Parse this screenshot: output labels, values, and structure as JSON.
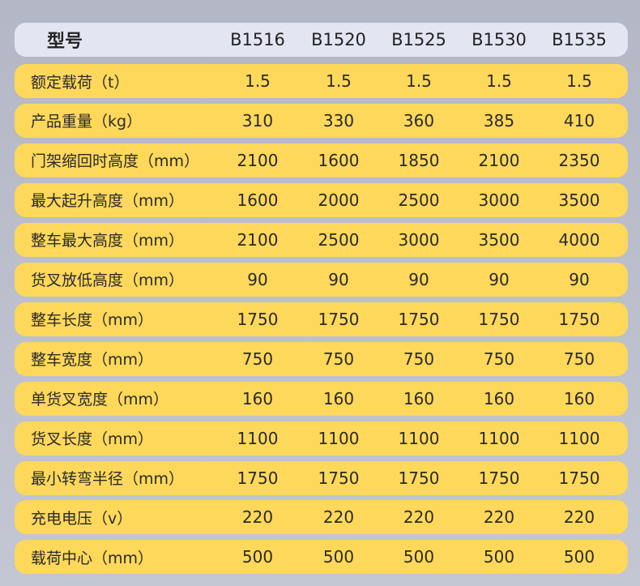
{
  "header": {
    "label": "型号",
    "models": [
      "B1516",
      "B1520",
      "B1525",
      "B1530",
      "B1535"
    ]
  },
  "colors": {
    "header_bg": "#e3e6f2",
    "row_bg": "#fdd85a",
    "page_bg": "#b4b7c5"
  },
  "rows": [
    {
      "label": "额定载荷（t）",
      "values": [
        "1.5",
        "1.5",
        "1.5",
        "1.5",
        "1.5"
      ]
    },
    {
      "label": "产品重量（kg）",
      "values": [
        "310",
        "330",
        "360",
        "385",
        "410"
      ]
    },
    {
      "label": "门架缩回时高度（mm）",
      "values": [
        "2100",
        "1600",
        "1850",
        "2100",
        "2350"
      ]
    },
    {
      "label": "最大起升高度（mm）",
      "values": [
        "1600",
        "2000",
        "2500",
        "3000",
        "3500"
      ]
    },
    {
      "label": "整车最大高度（mm）",
      "values": [
        "2100",
        "2500",
        "3000",
        "3500",
        "4000"
      ]
    },
    {
      "label": "货叉放低高度（mm）",
      "values": [
        "90",
        "90",
        "90",
        "90",
        "90"
      ]
    },
    {
      "label": "整车长度（mm）",
      "values": [
        "1750",
        "1750",
        "1750",
        "1750",
        "1750"
      ]
    },
    {
      "label": "整车宽度（mm）",
      "values": [
        "750",
        "750",
        "750",
        "750",
        "750"
      ]
    },
    {
      "label": "单货叉宽度（mm）",
      "values": [
        "160",
        "160",
        "160",
        "160",
        "160"
      ]
    },
    {
      "label": "货叉长度（mm）",
      "values": [
        "1100",
        "1100",
        "1100",
        "1100",
        "1100"
      ]
    },
    {
      "label": "最小转弯半径（mm）",
      "values": [
        "1750",
        "1750",
        "1750",
        "1750",
        "1750"
      ]
    },
    {
      "label": "充电电压（v）",
      "values": [
        "220",
        "220",
        "220",
        "220",
        "220"
      ]
    },
    {
      "label": "载荷中心（mm）",
      "values": [
        "500",
        "500",
        "500",
        "500",
        "500"
      ]
    }
  ]
}
